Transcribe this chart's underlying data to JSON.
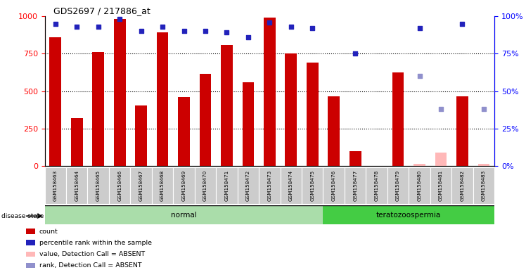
{
  "title": "GDS2697 / 217886_at",
  "samples": [
    "GSM158463",
    "GSM158464",
    "GSM158465",
    "GSM158466",
    "GSM158467",
    "GSM158468",
    "GSM158469",
    "GSM158470",
    "GSM158471",
    "GSM158472",
    "GSM158473",
    "GSM158474",
    "GSM158475",
    "GSM158476",
    "GSM158477",
    "GSM158478",
    "GSM158479",
    "GSM158480",
    "GSM158481",
    "GSM158482",
    "GSM158483"
  ],
  "counts": [
    860,
    320,
    760,
    980,
    405,
    890,
    460,
    615,
    810,
    560,
    990,
    750,
    690,
    465,
    100,
    0,
    625,
    0,
    0,
    465,
    0
  ],
  "percentile_ranks": [
    95,
    93,
    93,
    98,
    90,
    93,
    90,
    90,
    89,
    86,
    96,
    93,
    92,
    null,
    75,
    null,
    null,
    92,
    null,
    95,
    null
  ],
  "absent_values": [
    null,
    null,
    null,
    null,
    null,
    null,
    null,
    null,
    null,
    null,
    null,
    null,
    null,
    null,
    null,
    null,
    null,
    5,
    30,
    null,
    5
  ],
  "absent_ranks": [
    null,
    null,
    null,
    null,
    null,
    null,
    null,
    null,
    null,
    null,
    null,
    null,
    null,
    null,
    null,
    null,
    null,
    60,
    38,
    null,
    38
  ],
  "disease_groups": [
    {
      "label": "normal",
      "start": 0,
      "end": 12
    },
    {
      "label": "teratozoospermia",
      "start": 13,
      "end": 20
    }
  ],
  "bar_color": "#cc0000",
  "blue_dot_color": "#2222bb",
  "absent_bar_color": "#ffb8b8",
  "absent_rank_color": "#9090cc",
  "normal_bg": "#aaddaa",
  "terato_bg": "#44cc44",
  "tick_label_bg": "#cccccc",
  "ylim": [
    0,
    1000
  ],
  "y2lim": [
    0,
    100
  ],
  "yticks": [
    0,
    250,
    500,
    750,
    1000
  ],
  "y2ticks": [
    0,
    25,
    50,
    75,
    100
  ],
  "legend_items": [
    {
      "label": "count",
      "color": "#cc0000"
    },
    {
      "label": "percentile rank within the sample",
      "color": "#2222bb"
    },
    {
      "label": "value, Detection Call = ABSENT",
      "color": "#ffb8b8"
    },
    {
      "label": "rank, Detection Call = ABSENT",
      "color": "#9090cc"
    }
  ],
  "disease_state_label": "disease state"
}
